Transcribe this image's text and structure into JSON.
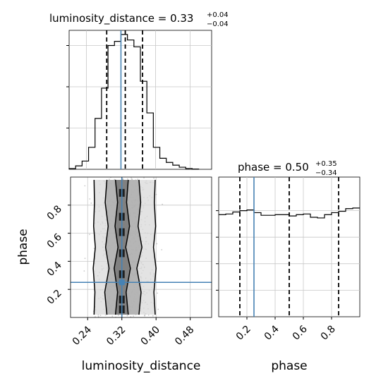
{
  "chart_data": [
    {
      "panel": "luminosity_distance-marginal",
      "type": "histogram",
      "title": {
        "param": "luminosity_distance",
        "median": "0.33",
        "plus": "+0.04",
        "minus": "−0.04"
      },
      "bin_edges": [
        0.2,
        0.215,
        0.23,
        0.245,
        0.26,
        0.275,
        0.29,
        0.305,
        0.32,
        0.335,
        0.35,
        0.365,
        0.38,
        0.395,
        0.41,
        0.425,
        0.44,
        0.455,
        0.47,
        0.485,
        0.5
      ],
      "counts": [
        0.005,
        0.025,
        0.06,
        0.16,
        0.37,
        0.59,
        0.9,
        0.93,
        0.98,
        0.94,
        0.89,
        0.64,
        0.41,
        0.16,
        0.08,
        0.05,
        0.03,
        0.015,
        0.005,
        0.002
      ],
      "quantiles": [
        0.287,
        0.33,
        0.37
      ],
      "truth": 0.32,
      "xlim": [
        0.2,
        0.53
      ]
    },
    {
      "panel": "phase-marginal",
      "type": "histogram",
      "title": {
        "param": "phase",
        "median": "0.50",
        "plus": "+0.35",
        "minus": "−0.34"
      },
      "bin_edges": [
        0.0,
        0.05,
        0.1,
        0.15,
        0.2,
        0.25,
        0.3,
        0.35,
        0.4,
        0.45,
        0.5,
        0.55,
        0.6,
        0.65,
        0.7,
        0.75,
        0.8,
        0.85,
        0.9,
        0.95,
        1.0
      ],
      "counts": [
        0.77,
        0.775,
        0.79,
        0.8,
        0.805,
        0.785,
        0.765,
        0.765,
        0.77,
        0.77,
        0.76,
        0.77,
        0.775,
        0.75,
        0.745,
        0.77,
        0.785,
        0.795,
        0.815,
        0.82
      ],
      "quantiles": [
        0.15,
        0.5,
        0.85
      ],
      "truth": 0.25,
      "xlim": [
        0.0,
        1.0
      ]
    },
    {
      "panel": "joint",
      "type": "scatter",
      "xlabel": "luminosity_distance",
      "ylabel": "phase",
      "xlim": [
        0.2,
        0.53
      ],
      "ylim": [
        0.0,
        1.0
      ],
      "truth": [
        0.32,
        0.25
      ],
      "x_ticks": [
        "0.24",
        "0.32",
        "0.40",
        "0.48"
      ],
      "x_tick_values": [
        0.24,
        0.32,
        0.4,
        0.48
      ],
      "y_ticks": [
        "0.2",
        "0.4",
        "0.6",
        "0.8"
      ],
      "y_tick_values": [
        0.2,
        0.4,
        0.6,
        0.8
      ],
      "contours": [
        {
          "x": [
            0.255,
            0.257,
            0.253,
            0.258,
            0.254,
            0.256,
            0.255
          ],
          "x2": [
            0.398,
            0.395,
            0.4,
            0.394,
            0.399,
            0.396,
            0.398
          ],
          "y": [
            0.02,
            0.18,
            0.35,
            0.5,
            0.65,
            0.82,
            0.98
          ]
        },
        {
          "x": [
            0.285,
            0.28,
            0.29,
            0.282,
            0.288,
            0.281,
            0.285
          ],
          "x2": [
            0.36,
            0.365,
            0.355,
            0.367,
            0.358,
            0.364,
            0.36
          ],
          "y": [
            0.02,
            0.18,
            0.35,
            0.5,
            0.65,
            0.82,
            0.98
          ]
        },
        {
          "x": [
            0.305,
            0.31,
            0.302,
            0.311,
            0.304,
            0.31,
            0.305
          ],
          "x2": [
            0.335,
            0.33,
            0.34,
            0.329,
            0.338,
            0.331,
            0.335
          ],
          "y": [
            0.02,
            0.18,
            0.35,
            0.5,
            0.65,
            0.82,
            0.98
          ]
        }
      ]
    },
    {
      "panel": "phase-marginal-axis",
      "type": "axis",
      "xlabel": "phase",
      "x_ticks": [
        "0.2",
        "0.4",
        "0.6",
        "0.8"
      ],
      "x_tick_values": [
        0.2,
        0.4,
        0.6,
        0.8
      ]
    }
  ],
  "colors": {
    "truth": "#4682b4",
    "grid": "#c8c8c8",
    "hist": "#000000"
  }
}
